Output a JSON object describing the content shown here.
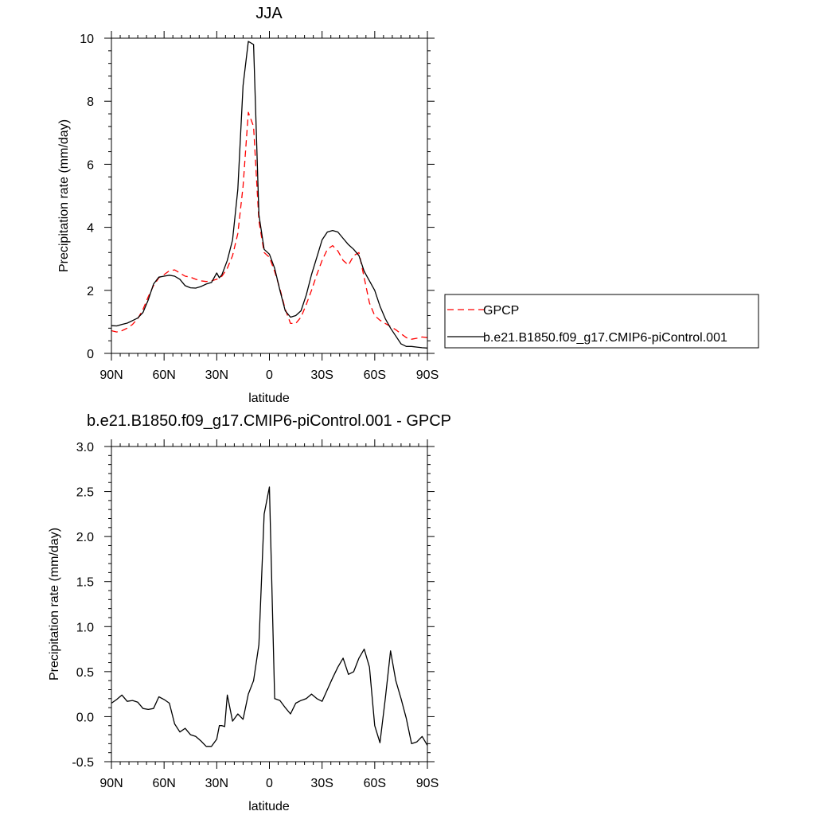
{
  "chart_data": [
    {
      "type": "line",
      "title": "JJA",
      "xlabel": "latitude",
      "ylabel": "Precipitation rate (mm/day)",
      "xlim": [
        90,
        -90
      ],
      "ylim": [
        0,
        10
      ],
      "x_ticks": [
        90,
        60,
        30,
        0,
        -30,
        -60,
        -90
      ],
      "x_tick_labels": [
        "90N",
        "60N",
        "30N",
        "0",
        "30S",
        "60S",
        "90S"
      ],
      "y_ticks": [
        0,
        2,
        4,
        6,
        8,
        10
      ],
      "y_tick_labels": [
        "0",
        "2",
        "4",
        "6",
        "8",
        "10"
      ],
      "legend_position": "right",
      "series": [
        {
          "name": "GPCP",
          "color": "#ff0000",
          "dash": "dashed",
          "x": [
            90,
            87,
            84,
            81,
            78,
            75,
            72,
            69,
            66,
            63,
            60,
            57,
            54,
            51,
            48,
            45,
            42,
            39,
            36,
            33,
            30,
            27,
            24,
            21,
            18,
            15,
            12,
            9,
            6,
            3,
            0,
            -3,
            -6,
            -9,
            -12,
            -15,
            -18,
            -21,
            -24,
            -27,
            -30,
            -33,
            -36,
            -39,
            -42,
            -45,
            -48,
            -51,
            -54,
            -57,
            -60,
            -63,
            -66,
            -69,
            -72,
            -75,
            -78,
            -81,
            -84,
            -87,
            -90
          ],
          "values": [
            0.72,
            0.68,
            0.72,
            0.8,
            0.92,
            1.1,
            1.4,
            1.8,
            2.15,
            2.4,
            2.5,
            2.62,
            2.65,
            2.55,
            2.45,
            2.42,
            2.35,
            2.3,
            2.28,
            2.3,
            2.35,
            2.45,
            2.7,
            3.1,
            3.8,
            5.3,
            7.65,
            7.2,
            4.2,
            3.2,
            3.05,
            2.6,
            2.05,
            1.4,
            0.95,
            0.95,
            1.15,
            1.55,
            2.0,
            2.5,
            2.95,
            3.3,
            3.42,
            3.25,
            2.95,
            2.8,
            3.1,
            3.2,
            2.4,
            1.6,
            1.2,
            1.05,
            0.95,
            0.85,
            0.75,
            0.62,
            0.5,
            0.45,
            0.48,
            0.52,
            0.5
          ]
        },
        {
          "name": "b.e21.B1850.f09_g17.CMIP6-piControl.001",
          "color": "#000000",
          "dash": "solid",
          "x": [
            90,
            87,
            84,
            81,
            78,
            75,
            72,
            69,
            66,
            63,
            60,
            57,
            54,
            51,
            48,
            45,
            42,
            39,
            36,
            33,
            30,
            28.5,
            27,
            24,
            21,
            18,
            15,
            12,
            9,
            6,
            3,
            0,
            -3,
            -6,
            -9,
            -12,
            -15,
            -18,
            -21,
            -24,
            -27,
            -30,
            -33,
            -36,
            -39,
            -42,
            -45,
            -48,
            -51,
            -54,
            -57,
            -60,
            -63,
            -66,
            -69,
            -72,
            -75,
            -78,
            -81,
            -84,
            -87,
            -90
          ],
          "values": [
            0.88,
            0.87,
            0.92,
            0.96,
            1.04,
            1.12,
            1.3,
            1.7,
            2.2,
            2.42,
            2.45,
            2.48,
            2.45,
            2.35,
            2.15,
            2.08,
            2.07,
            2.12,
            2.2,
            2.25,
            2.55,
            2.4,
            2.5,
            2.95,
            3.6,
            5.2,
            8.5,
            9.9,
            9.8,
            4.4,
            3.3,
            3.15,
            2.7,
            2.0,
            1.35,
            1.15,
            1.2,
            1.35,
            1.85,
            2.5,
            3.05,
            3.6,
            3.85,
            3.9,
            3.85,
            3.65,
            3.45,
            3.3,
            3.1,
            2.6,
            2.3,
            2.0,
            1.5,
            1.1,
            0.8,
            0.55,
            0.3,
            0.22,
            0.22,
            0.2,
            0.18,
            0.17
          ]
        }
      ]
    },
    {
      "type": "line",
      "title": "b.e21.B1850.f09_g17.CMIP6-piControl.001 - GPCP",
      "xlabel": "latitude",
      "ylabel": "Precipitation rate (mm/day)",
      "xlim": [
        90,
        -90
      ],
      "ylim": [
        -0.5,
        3.0
      ],
      "x_ticks": [
        90,
        60,
        30,
        0,
        -30,
        -60,
        -90
      ],
      "x_tick_labels": [
        "90N",
        "60N",
        "30N",
        "0",
        "30S",
        "60S",
        "90S"
      ],
      "y_ticks": [
        -0.5,
        0.0,
        0.5,
        1.0,
        1.5,
        2.0,
        2.5,
        3.0
      ],
      "y_tick_labels": [
        "-0.5",
        "0.0",
        "0.5",
        "1.0",
        "1.5",
        "2.0",
        "2.5",
        "3.0"
      ],
      "series": [
        {
          "color": "#000000",
          "dash": "solid",
          "x": [
            90,
            87,
            84,
            81,
            78,
            75,
            72,
            69,
            66,
            63,
            60,
            57,
            54,
            51,
            48,
            45,
            42,
            39,
            36,
            33,
            30,
            28.5,
            27,
            25.5,
            24,
            21,
            18,
            15,
            12,
            9,
            6,
            3,
            0,
            -3,
            -6,
            -9,
            -12,
            -15,
            -18,
            -21,
            -24,
            -27,
            -30,
            -33,
            -36,
            -39,
            -42,
            -45,
            -48,
            -51,
            -54,
            -57,
            -60,
            -63,
            -66,
            -69,
            -72,
            -75,
            -78,
            -81,
            -84,
            -87,
            -90
          ],
          "values": [
            0.15,
            0.19,
            0.24,
            0.17,
            0.18,
            0.16,
            0.09,
            0.08,
            0.09,
            0.22,
            0.19,
            0.15,
            -0.08,
            -0.17,
            -0.13,
            -0.2,
            -0.22,
            -0.27,
            -0.33,
            -0.33,
            -0.25,
            -0.1,
            -0.1,
            -0.11,
            0.24,
            -0.05,
            0.03,
            -0.03,
            0.25,
            0.4,
            0.8,
            2.25,
            2.55,
            0.2,
            0.18,
            0.1,
            0.03,
            0.15,
            0.18,
            0.2,
            0.25,
            0.2,
            0.17,
            0.3,
            0.43,
            0.55,
            0.65,
            0.47,
            0.5,
            0.65,
            0.75,
            0.55,
            -0.1,
            -0.29,
            0.2,
            0.73,
            0.4,
            0.2,
            -0.02,
            -0.3,
            -0.28,
            -0.22,
            -0.32
          ]
        }
      ]
    }
  ]
}
